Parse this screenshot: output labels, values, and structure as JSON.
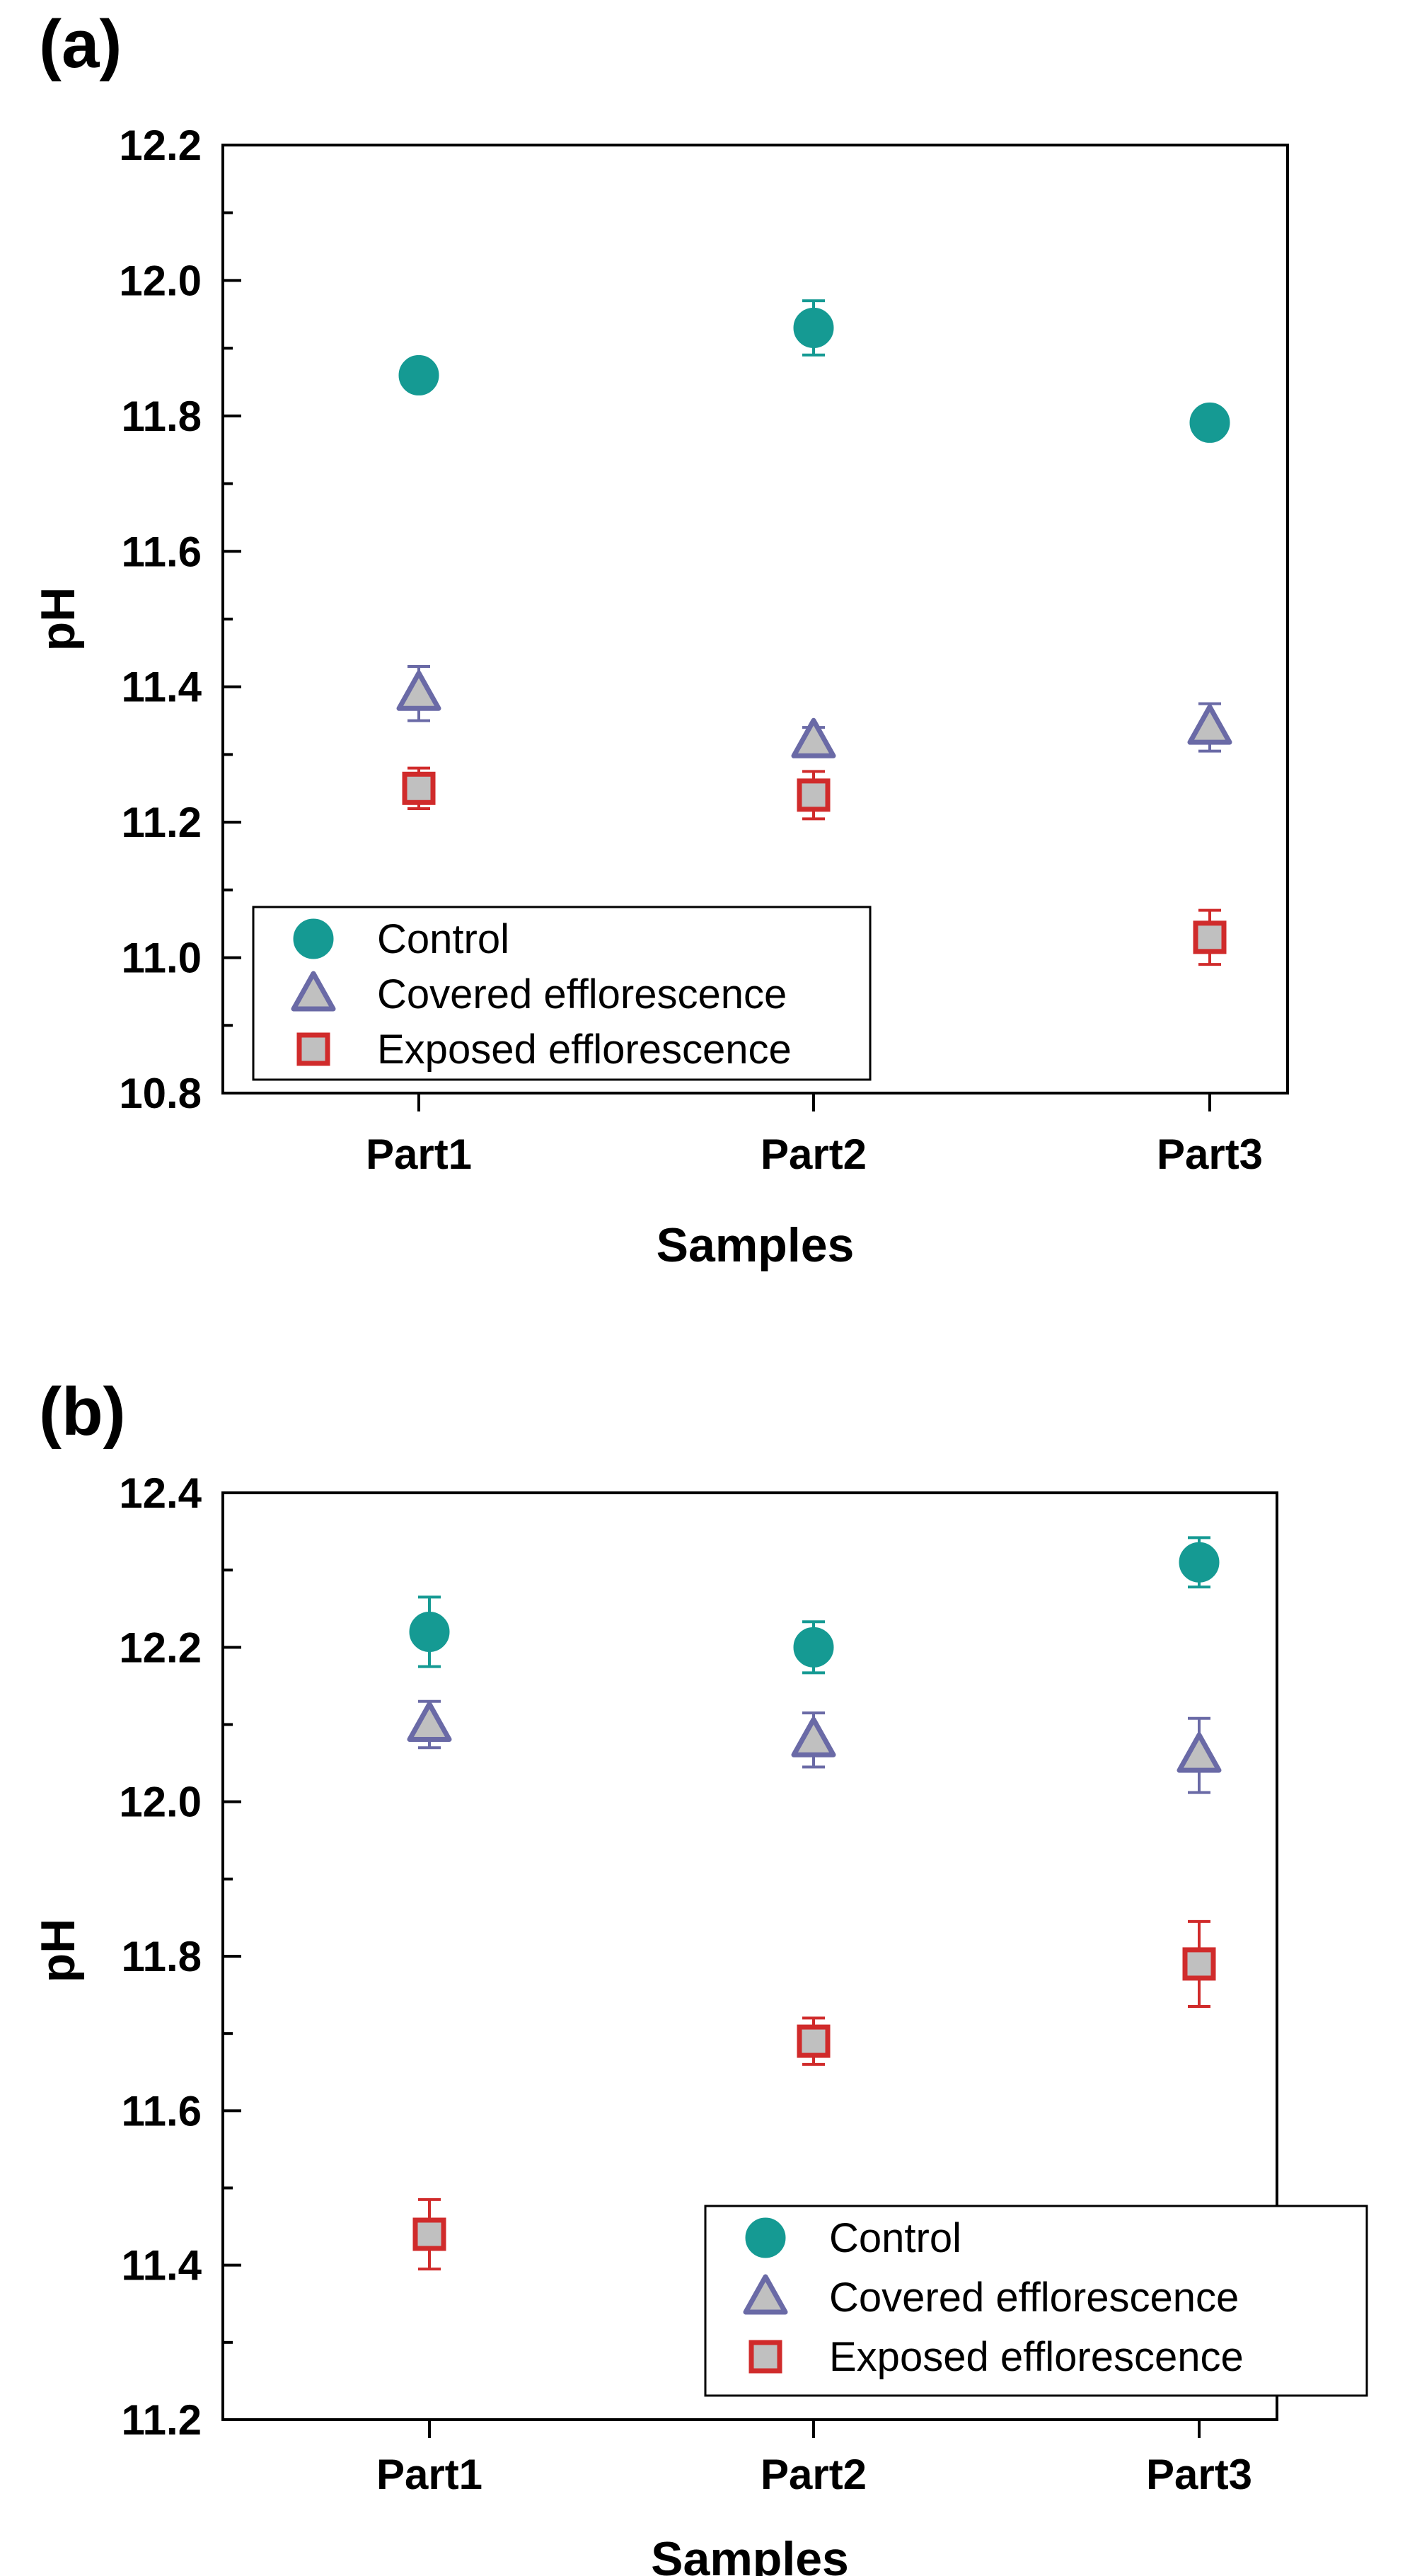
{
  "chart_data": [
    {
      "panel": "(a)",
      "type": "scatter",
      "categories": [
        "Part1",
        "Part2",
        "Part3"
      ],
      "xlabel": "Samples",
      "ylabel": "pH",
      "ylim": [
        10.8,
        12.2
      ],
      "yticks": [
        "10.8",
        "11.0",
        "11.2",
        "11.4",
        "11.6",
        "11.8",
        "12.0",
        "12.2"
      ],
      "grid": false,
      "legend_position": "bottom-left",
      "series": [
        {
          "name": "Control",
          "marker": "circle",
          "color": "#159a93",
          "fill": "#159a93",
          "values": [
            11.86,
            11.93,
            11.79
          ],
          "errors": [
            0.02,
            0.04,
            0.01
          ]
        },
        {
          "name": "Covered efflorescence",
          "marker": "triangle",
          "color": "#6a6aa6",
          "fill": "#c0c0c0",
          "values": [
            11.39,
            11.32,
            11.34
          ],
          "errors": [
            0.04,
            0.02,
            0.035
          ]
        },
        {
          "name": "Exposed efflorescence",
          "marker": "square",
          "color": "#d02b2b",
          "fill": "#c0c0c0",
          "values": [
            11.25,
            11.24,
            11.03
          ],
          "errors": [
            0.03,
            0.035,
            0.04
          ]
        }
      ]
    },
    {
      "panel": "(b)",
      "type": "scatter",
      "categories": [
        "Part1",
        "Part2",
        "Part3"
      ],
      "xlabel": "Samples",
      "ylabel": "pH",
      "ylim": [
        11.2,
        12.4
      ],
      "yticks": [
        "11.2",
        "11.4",
        "11.6",
        "11.8",
        "12.0",
        "12.2",
        "12.4"
      ],
      "grid": false,
      "legend_position": "bottom-right",
      "series": [
        {
          "name": "Control",
          "marker": "circle",
          "color": "#159a93",
          "fill": "#159a93",
          "values": [
            12.22,
            12.2,
            12.31
          ],
          "errors": [
            0.045,
            0.033,
            0.032
          ]
        },
        {
          "name": "Covered efflorescence",
          "marker": "triangle",
          "color": "#6a6aa6",
          "fill": "#c0c0c0",
          "values": [
            12.1,
            12.08,
            12.06
          ],
          "errors": [
            0.03,
            0.035,
            0.048
          ]
        },
        {
          "name": "Exposed efflorescence",
          "marker": "square",
          "color": "#d02b2b",
          "fill": "#c0c0c0",
          "values": [
            11.44,
            11.69,
            11.79
          ],
          "errors": [
            0.045,
            0.03,
            0.055
          ]
        }
      ]
    }
  ]
}
